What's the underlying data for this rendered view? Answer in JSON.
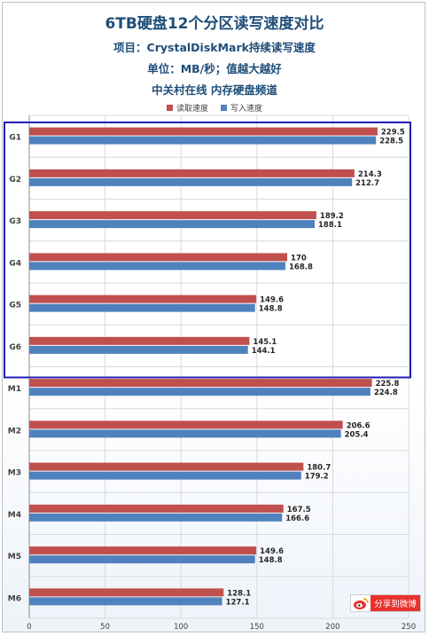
{
  "title": "6TB硬盘12个分区读写速度对比",
  "subtitle_1": "项目：CrystalDiskMark持续读写速度",
  "subtitle_2": "单位：MB/秒；值越大越好",
  "subtitle_3": "中关村在线 内存硬盘频道",
  "share_button": {
    "label": "分享到微博",
    "icon": "weibo-icon"
  },
  "colors": {
    "read": "#c0504d",
    "write": "#4f81bd",
    "highlight": "#1f1fb4",
    "title": "#1f4e79"
  },
  "chart_data": {
    "type": "bar",
    "orientation": "horizontal",
    "categories": [
      "G1",
      "G2",
      "G3",
      "G4",
      "G5",
      "G6",
      "M1",
      "M2",
      "M3",
      "M4",
      "M5",
      "M6"
    ],
    "series": [
      {
        "name": "读取速度",
        "values": [
          229.5,
          214.3,
          189.2,
          170,
          149.6,
          145.1,
          225.8,
          206.6,
          180.7,
          167.5,
          149.6,
          128.1
        ],
        "labels": [
          "229.5",
          "214.3",
          "189.2",
          "170",
          "149.6",
          "145.1",
          "225.8",
          "206.6",
          "180.7",
          "167.5",
          "149.6",
          "128.1"
        ]
      },
      {
        "name": "写入速度",
        "values": [
          228.5,
          212.7,
          188.1,
          168.8,
          148.8,
          144.1,
          224.8,
          205.4,
          179.2,
          166.6,
          148.8,
          127.1
        ],
        "labels": [
          "228.5",
          "212.7",
          "188.1",
          "168.8",
          "148.8",
          "144.1",
          "224.8",
          "205.4",
          "179.2",
          "166.6",
          "148.8",
          "127.1"
        ]
      }
    ],
    "xlim": [
      0,
      250
    ],
    "xticks": [
      "0",
      "50",
      "100",
      "150",
      "200",
      "250"
    ],
    "grid": true,
    "legend_position": "top",
    "highlighted_group": [
      "G1",
      "G2",
      "G3",
      "G4",
      "G5",
      "G6"
    ]
  }
}
